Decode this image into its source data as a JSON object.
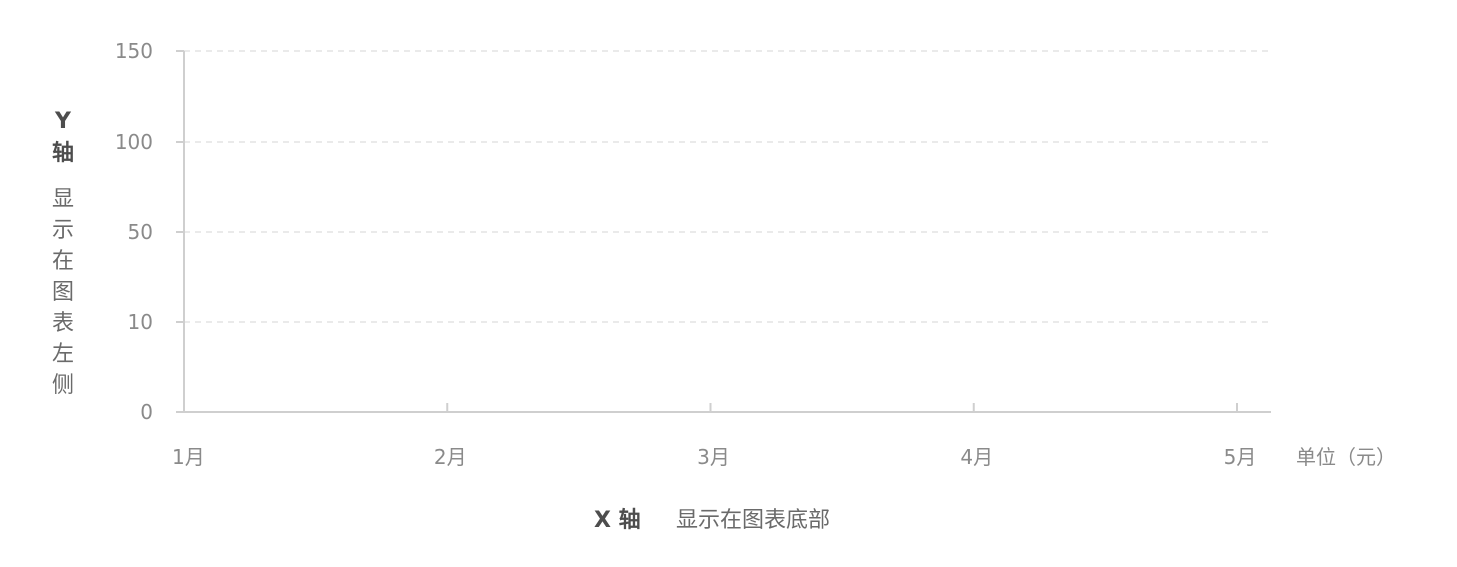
{
  "chart_data": {
    "type": "line",
    "categories": [
      "1月",
      "2月",
      "3月",
      "4月",
      "5月"
    ],
    "y_ticks": [
      0,
      10,
      50,
      100,
      150
    ],
    "series": [],
    "xlabel": "X 轴",
    "xlabel_desc": "显示在图表底部",
    "ylabel": "Y 轴",
    "ylabel_desc": "显示在图表左侧",
    "unit": "单位（元）",
    "grid": true,
    "grid_style": "dashed"
  },
  "colors": {
    "axis": "#cfcfcf",
    "grid": "#e3e3e3",
    "tick_text": "#8a8a8a",
    "title_text": "#4d4d4d"
  }
}
